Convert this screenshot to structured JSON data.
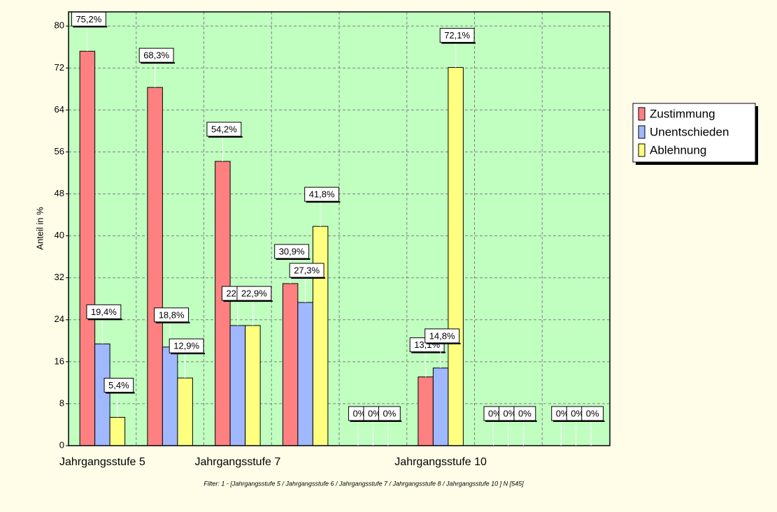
{
  "chart_data": {
    "type": "bar",
    "categories": [
      "Jahrgangsstufe 5",
      null,
      "Jahrgangsstufe 7",
      null,
      null,
      "Jahrgangsstufe 10",
      null,
      null
    ],
    "series": [
      {
        "name": "Zustimmung",
        "color": "#ff8080",
        "values": [
          75.2,
          68.3,
          54.2,
          30.9,
          0,
          13.1,
          0,
          0
        ],
        "value_labels": [
          "75,2%",
          "68,3%",
          "54,2%",
          "30,9%",
          "0%",
          "13,1%",
          "0%",
          "0%"
        ]
      },
      {
        "name": "Unentschieden",
        "color": "#a0b8ff",
        "values": [
          19.4,
          18.8,
          22.9,
          27.3,
          0,
          14.8,
          0,
          0
        ],
        "value_labels": [
          "19,4%",
          "18,8%",
          "22,9%",
          "27,3%",
          "0%",
          "14,8%",
          "0%",
          "0%"
        ]
      },
      {
        "name": "Ablehnung",
        "color": "#ffff80",
        "values": [
          5.4,
          12.9,
          22.9,
          41.8,
          0,
          72.1,
          0,
          0
        ],
        "value_labels": [
          "5,4%",
          "12,9%",
          "22,9%",
          "41,8%",
          "0%",
          "72,1%",
          "0%",
          "0%"
        ]
      }
    ],
    "ylabel": "Anteil in %",
    "ylim": [
      0,
      82.7
    ],
    "yticks": [
      0,
      8,
      16,
      24,
      32,
      40,
      48,
      56,
      64,
      72,
      80
    ],
    "grid": true,
    "legend": "right",
    "footnote": "Filter:   1 -  [Jahrgangsstufe 5 / Jahrgangsstufe 6 / Jahrgangsstufe 7 / Jahrgangsstufe 8 / Jahrgangsstufe 10 ]     N [545]"
  }
}
